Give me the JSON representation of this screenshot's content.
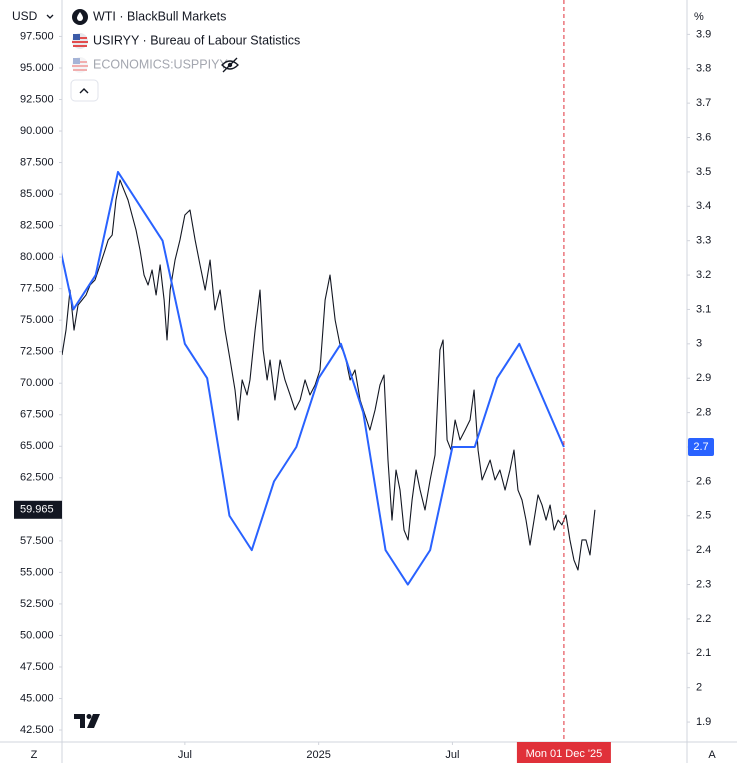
{
  "chart_data": {
    "type": "line",
    "currency": "USD",
    "y2_unit": "%",
    "hidden_indicator": "ECONOMICS:USPPIYY",
    "scale_buttons": [
      "Z",
      "A"
    ],
    "crosshair": {
      "x": 23,
      "label": "Mon 01 Dec '25",
      "color": "#e0313a"
    },
    "xlim": [
      0.49,
      28.52
    ],
    "xticks": [
      {
        "value": 6,
        "label": "Jul"
      },
      {
        "value": 12,
        "label": "2025"
      },
      {
        "value": 18,
        "label": "Jul"
      }
    ],
    "ylim": [
      41.55,
      100.39
    ],
    "yticks": [
      {
        "value": 97.5,
        "label": "97.500"
      },
      {
        "value": 95,
        "label": "95.000"
      },
      {
        "value": 92.5,
        "label": "92.500"
      },
      {
        "value": 90,
        "label": "90.000"
      },
      {
        "value": 87.5,
        "label": "87.500"
      },
      {
        "value": 85,
        "label": "85.000"
      },
      {
        "value": 82.5,
        "label": "82.500"
      },
      {
        "value": 80,
        "label": "80.000"
      },
      {
        "value": 77.5,
        "label": "77.500"
      },
      {
        "value": 75,
        "label": "75.000"
      },
      {
        "value": 72.5,
        "label": "72.500"
      },
      {
        "value": 70,
        "label": "70.000"
      },
      {
        "value": 67.5,
        "label": "67.500"
      },
      {
        "value": 65,
        "label": "65.000"
      },
      {
        "value": 62.5,
        "label": "62.500"
      },
      {
        "value": 60,
        "label": "60.000"
      },
      {
        "value": 57.5,
        "label": "57.500"
      },
      {
        "value": 55,
        "label": "55.000"
      },
      {
        "value": 52.5,
        "label": "52.500"
      },
      {
        "value": 50,
        "label": "50.000"
      },
      {
        "value": 47.5,
        "label": "47.500"
      },
      {
        "value": 45,
        "label": "45.000"
      },
      {
        "value": 42.5,
        "label": "42.500"
      }
    ],
    "y2lim": [
      1.842,
      4.0
    ],
    "y2ticks": [
      3.9,
      3.8,
      3.7,
      3.6,
      3.5,
      3.4,
      3.3,
      3.2,
      3.1,
      3,
      2.9,
      2.8,
      2.7,
      2.6,
      2.5,
      2.4,
      2.3,
      2.2,
      2.1,
      2,
      1.9
    ],
    "grid": false,
    "series": [
      {
        "name": "WTI · BlackBull Markets",
        "color": "#131722",
        "axis": "y",
        "x": [
          0.49,
          0.67,
          0.85,
          1.03,
          1.21,
          1.39,
          1.57,
          1.75,
          1.97,
          2.2,
          2.42,
          2.56,
          2.74,
          2.91,
          3.09,
          3.27,
          3.45,
          3.63,
          3.81,
          3.99,
          4.17,
          4.35,
          4.53,
          4.71,
          4.89,
          5.07,
          5.2,
          5.34,
          5.56,
          5.78,
          6.0,
          6.23,
          6.46,
          6.68,
          6.91,
          7.13,
          7.35,
          7.58,
          7.8,
          8.03,
          8.25,
          8.39,
          8.57,
          8.79,
          8.92,
          9.15,
          9.37,
          9.51,
          9.69,
          9.82,
          10.04,
          10.27,
          10.49,
          10.72,
          10.94,
          11.17,
          11.39,
          11.61,
          11.84,
          12.06,
          12.29,
          12.51,
          12.74,
          12.96,
          13.18,
          13.41,
          13.63,
          13.86,
          14.08,
          14.3,
          14.53,
          14.75,
          14.93,
          15.11,
          15.29,
          15.47,
          15.65,
          15.83,
          16.01,
          16.19,
          16.37,
          16.55,
          16.77,
          17.0,
          17.22,
          17.44,
          17.58,
          17.76,
          17.94,
          18.12,
          18.34,
          18.57,
          18.79,
          18.97,
          19.15,
          19.33,
          19.51,
          19.69,
          19.91,
          20.13,
          20.36,
          20.58,
          20.76,
          20.94,
          21.12,
          21.3,
          21.48,
          21.66,
          21.84,
          22.02,
          22.2,
          22.38,
          22.56,
          22.74,
          22.91,
          23.09,
          23.27,
          23.45,
          23.63,
          23.81,
          23.99,
          24.17,
          24.39
        ],
        "values": [
          72.24,
          74.22,
          77.39,
          74.22,
          76.2,
          76.6,
          77.0,
          77.79,
          78.19,
          79.38,
          80.56,
          81.36,
          81.75,
          84.53,
          86.12,
          85.32,
          84.53,
          83.34,
          82.15,
          80.56,
          78.58,
          77.79,
          78.98,
          77.0,
          79.38,
          76.6,
          73.43,
          77.39,
          79.77,
          81.36,
          83.34,
          83.74,
          81.36,
          79.38,
          77.39,
          79.77,
          75.81,
          77.39,
          74.22,
          71.84,
          69.46,
          67.08,
          70.26,
          69.07,
          70.26,
          74.22,
          77.39,
          72.64,
          70.26,
          71.84,
          68.67,
          71.84,
          70.26,
          69.07,
          67.88,
          68.67,
          70.26,
          69.07,
          69.86,
          71.05,
          76.6,
          78.58,
          75.01,
          73.03,
          72.24,
          70.26,
          71.05,
          68.67,
          67.48,
          66.29,
          67.88,
          69.86,
          70.65,
          63.91,
          59.15,
          63.12,
          61.53,
          58.36,
          57.57,
          60.74,
          63.12,
          61.53,
          59.95,
          62.33,
          64.31,
          72.64,
          73.43,
          65.5,
          64.7,
          67.08,
          65.5,
          66.29,
          67.08,
          69.46,
          64.7,
          62.33,
          63.12,
          63.91,
          62.33,
          63.12,
          61.53,
          63.12,
          64.7,
          61.53,
          60.74,
          59.15,
          57.17,
          59.15,
          61.14,
          60.34,
          59.15,
          60.34,
          58.36,
          59.15,
          58.76,
          59.55,
          57.57,
          55.98,
          55.19,
          57.57,
          57.57,
          56.38,
          59.965
        ]
      },
      {
        "name": "USIRYY · Bureau of Labour Statistics",
        "color": "#2962ff",
        "axis": "y2",
        "x": [
          0,
          1,
          2,
          3,
          4,
          5,
          6,
          7,
          8,
          9,
          10,
          11,
          12,
          13,
          14,
          15,
          16,
          17,
          18,
          19,
          20,
          21,
          23
        ],
        "values": [
          3.4,
          3.1,
          3.2,
          3.5,
          3.4,
          3.3,
          3.0,
          2.9,
          2.5,
          2.4,
          2.6,
          2.7,
          2.9,
          3.0,
          2.8,
          2.4,
          2.3,
          2.4,
          2.7,
          2.7,
          2.9,
          3.0,
          2.7
        ]
      }
    ]
  }
}
